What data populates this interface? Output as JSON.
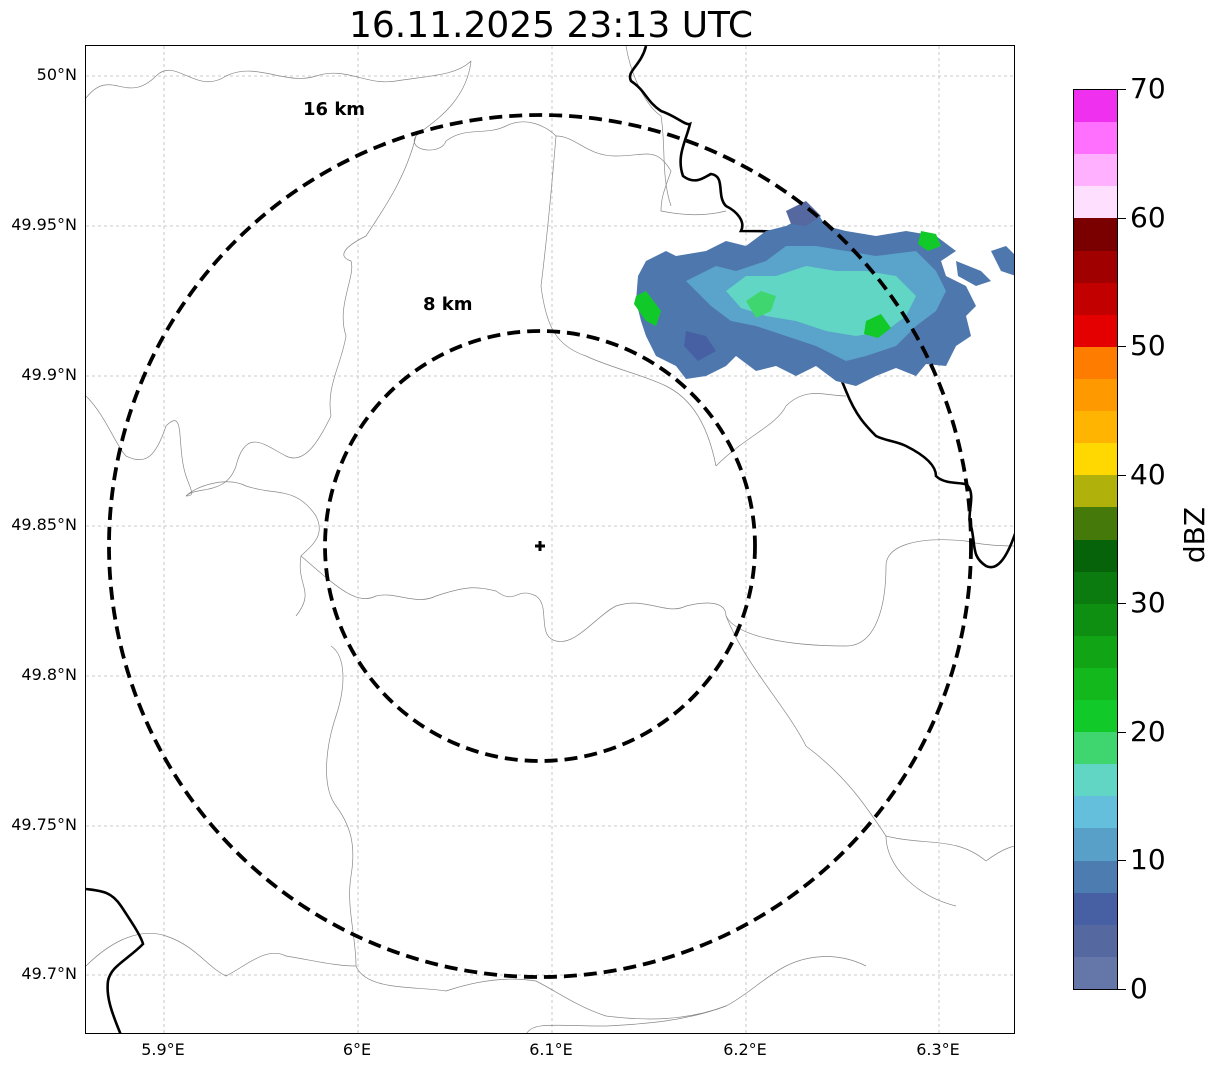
{
  "title": "16.11.2025 23:13 UTC",
  "map": {
    "lat_labels": [
      "50°N",
      "49.95°N",
      "49.9°N",
      "49.85°N",
      "49.8°N",
      "49.75°N",
      "49.7°N"
    ],
    "lon_labels": [
      "5.9°E",
      "6°E",
      "6.1°E",
      "6.2°E",
      "6.3°E"
    ],
    "range_rings": [
      {
        "label": "16 km",
        "radius_km": 16
      },
      {
        "label": "8 km",
        "radius_km": 8
      }
    ],
    "radar_site_marker": "plus-icon",
    "precipitation_area": "north-east of radar, reflectivity 0–25 dBZ"
  },
  "colorbar": {
    "title": "dBZ",
    "tick_labels": [
      "0",
      "10",
      "20",
      "30",
      "40",
      "50",
      "60",
      "70"
    ],
    "min": 0,
    "max": 70,
    "step": 2.5,
    "colors": [
      "#6577a8",
      "#5568a0",
      "#4660a3",
      "#4d7cb0",
      "#58a0c8",
      "#64bfdc",
      "#62d6c4",
      "#3fd670",
      "#12c92a",
      "#12b81c",
      "#11a515",
      "#0f8f12",
      "#0b7a0f",
      "#066309",
      "#457a0a",
      "#b0b20b",
      "#fed800",
      "#feb400",
      "#fe9900",
      "#fe7c00",
      "#e40000",
      "#c20000",
      "#a00000",
      "#7a0000",
      "#fee0fe",
      "#ffb0ff",
      "#ff70ff",
      "#ef30ef"
    ]
  }
}
